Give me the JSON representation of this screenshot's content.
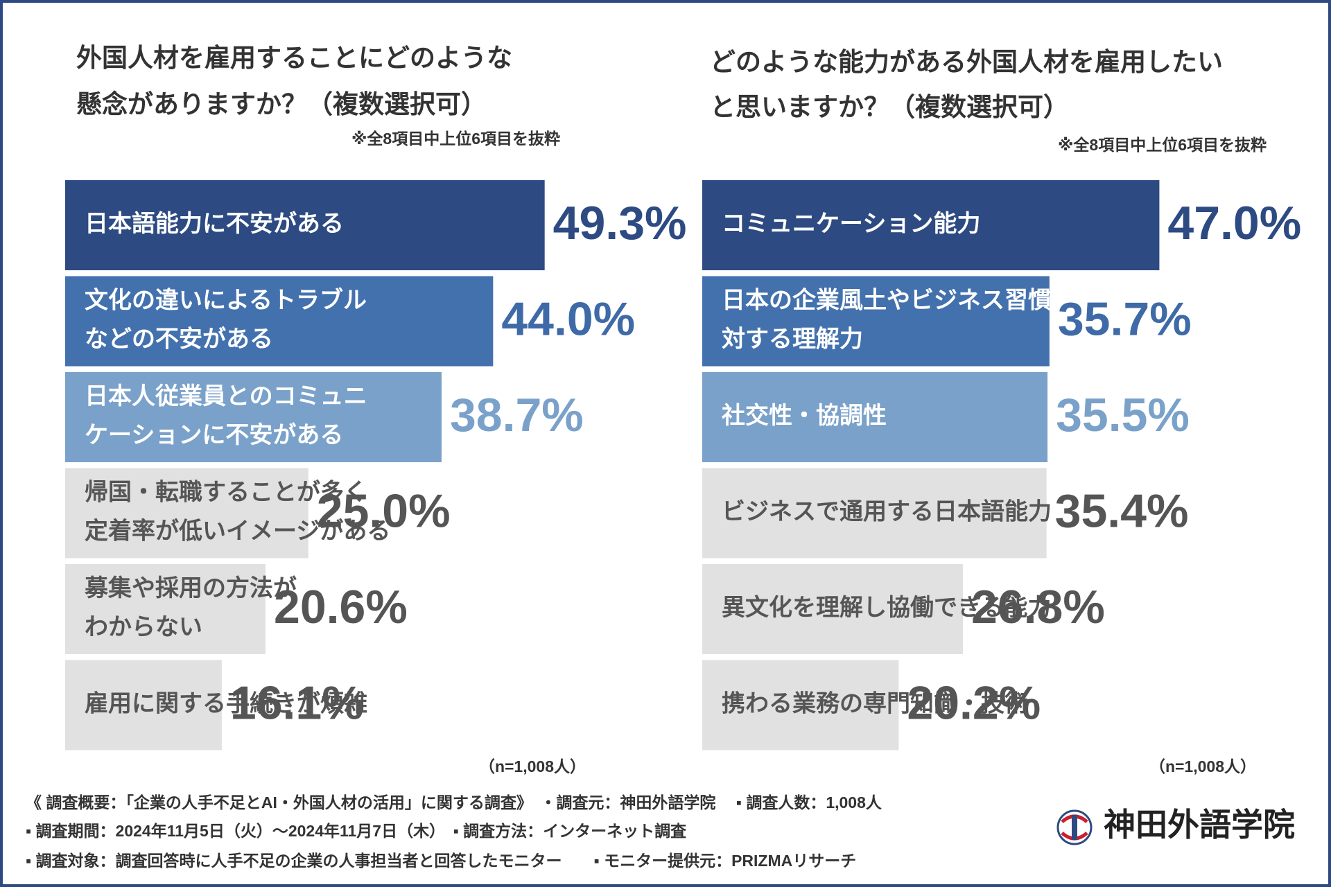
{
  "chart_data": [
    {
      "type": "bar",
      "orientation": "horizontal",
      "title": [
        "外国人材を雇用することにどのような",
        "懸念がありますか？（複数選択可）"
      ],
      "note": "※全8項目中上位6項目を抜粋",
      "categories": [
        [
          "日本語能力に不安がある"
        ],
        [
          "文化の違いによるトラブル",
          "などの不安がある"
        ],
        [
          "日本人従業員とのコミュニ",
          "ケーションに不安がある"
        ],
        [
          "帰国・転職することが多く",
          "定着率が低いイメージがある"
        ],
        [
          "募集や採用の方法が",
          "わからない"
        ],
        [
          "雇用に関する手続きが煩雑"
        ]
      ],
      "values": [
        49.3,
        44.0,
        38.7,
        25.0,
        20.6,
        16.1
      ],
      "value_labels": [
        "49.3%",
        "44.0%",
        "38.7%",
        "25.0%",
        "20.6%",
        "16.1%"
      ],
      "colors": [
        "#2d4b82",
        "#4371ad",
        "#7aa1c9",
        "#e1e1e1",
        "#e1e1e1",
        "#e1e1e1"
      ],
      "value_label_colors": [
        "#2d4b82",
        "#3f6aa8",
        "#7aa1c9",
        "#555555",
        "#555555",
        "#555555"
      ],
      "sample": "（n=1,008人）"
    },
    {
      "type": "bar",
      "orientation": "horizontal",
      "title": [
        "どのような能力がある外国人材を雇用したい",
        "と思いますか？（複数選択可）"
      ],
      "note": "※全8項目中上位6項目を抜粋",
      "categories": [
        [
          "コミュニケーション能力"
        ],
        [
          "日本の企業風土やビジネス習慣に",
          "対する理解力"
        ],
        [
          "社交性・協調性"
        ],
        [
          "ビジネスで通用する日本語能力"
        ],
        [
          "異文化を理解し協働できる能力"
        ],
        [
          "携わる業務の専門知識・技術"
        ]
      ],
      "values": [
        47.0,
        35.7,
        35.5,
        35.4,
        26.8,
        20.2
      ],
      "value_labels": [
        "47.0%",
        "35.7%",
        "35.5%",
        "35.4%",
        "26.8%",
        "20.2%"
      ],
      "colors": [
        "#2d4b82",
        "#4371ad",
        "#7aa1c9",
        "#e1e1e1",
        "#e1e1e1",
        "#e1e1e1"
      ],
      "value_label_colors": [
        "#2d4b82",
        "#3f6aa8",
        "#7aa1c9",
        "#555555",
        "#555555",
        "#555555"
      ],
      "sample": "（n=1,008人）"
    }
  ],
  "footer": [
    "《 調査概要：「企業の人手不足とAI・外国人材の活用」に関する調査》　・調査元：神田外語学院　 ▪ 調査人数：1,008人",
    "▪ 調査期間：2024年11月5日（火）～2024年11月7日（木）　▪ 調査方法：インターネット調査",
    "▪ 調査対象：調査回答時に人手不足の企業の人事担当者と回答したモニター　　▪ モニター提供元：PRIZMAリサーチ"
  ],
  "logo": "神田外語学院"
}
